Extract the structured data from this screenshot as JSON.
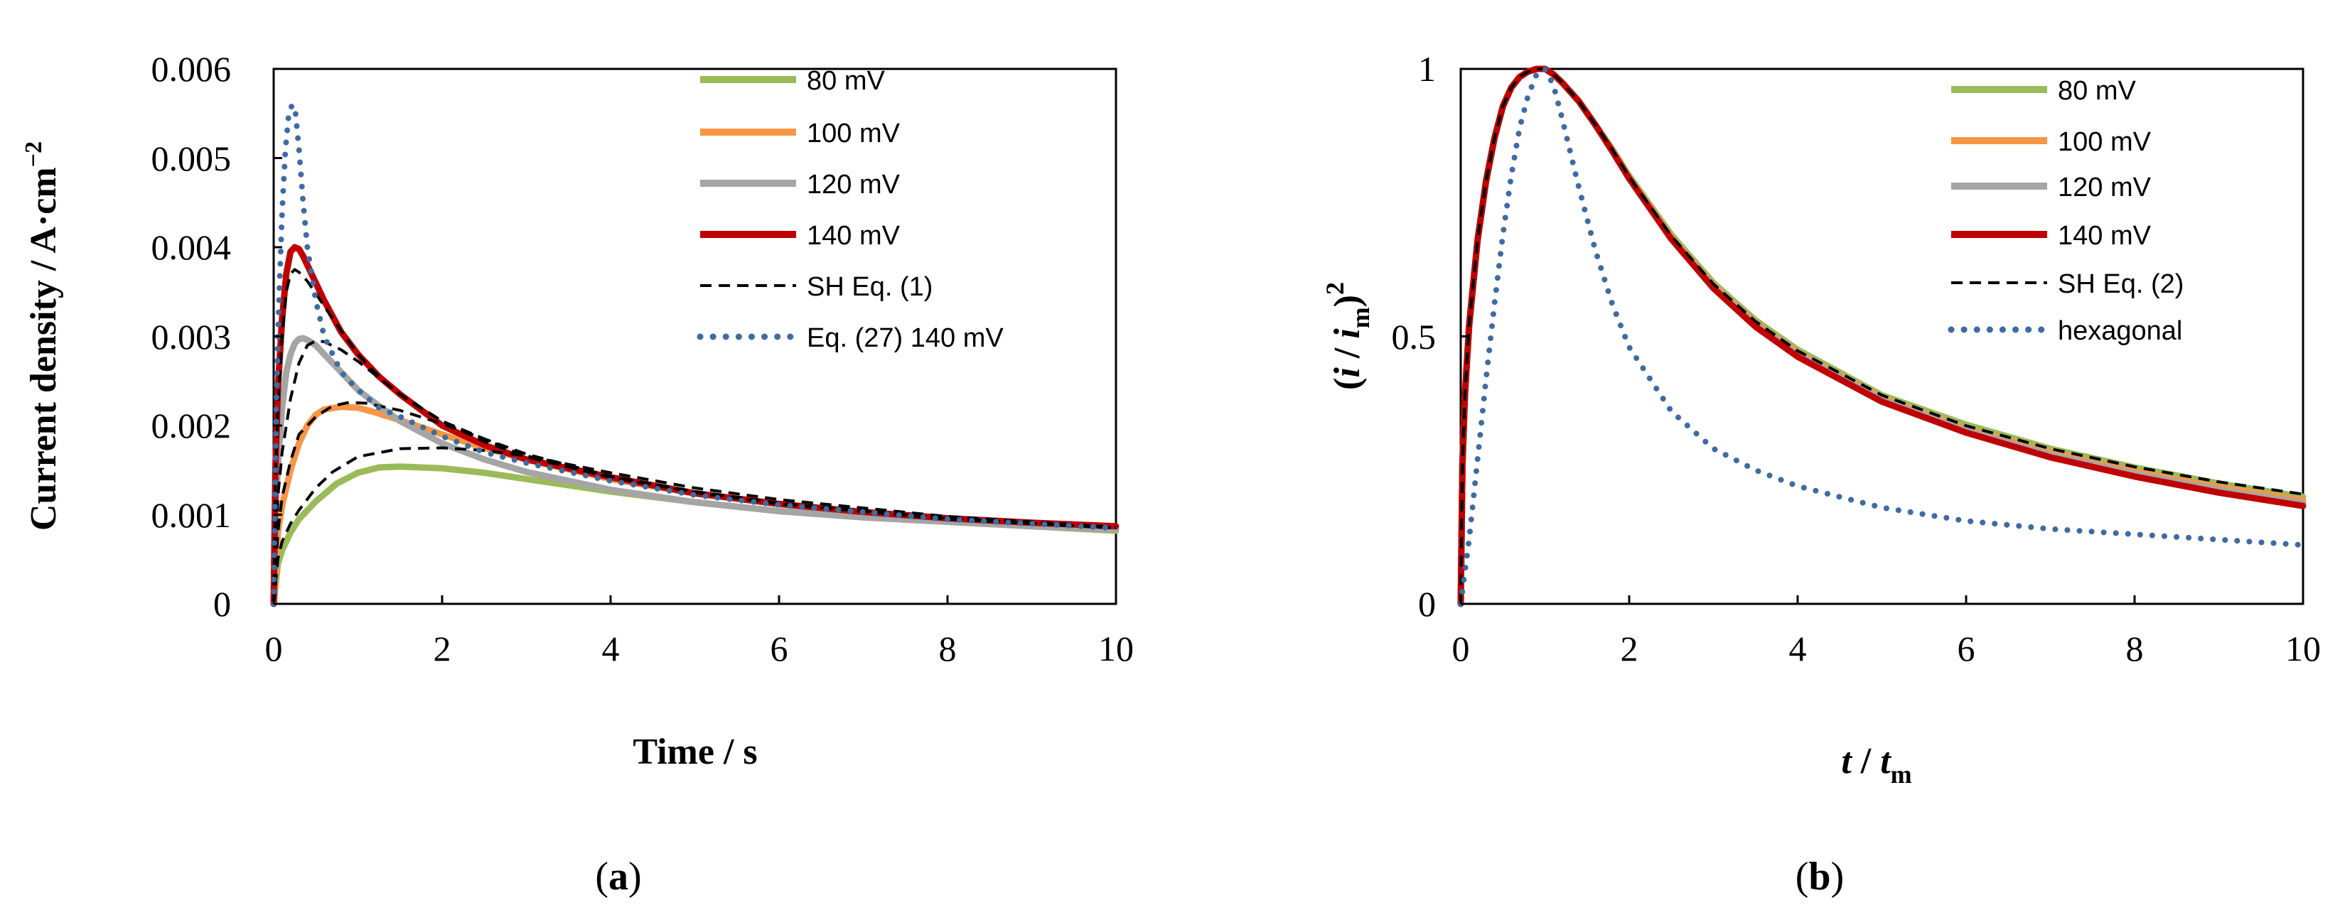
{
  "chart_data": [
    {
      "id": "a",
      "type": "line",
      "panel_label_open": "(",
      "panel_label_letter": "a",
      "panel_label_close": ")",
      "xlabel": "Time / s",
      "ylabel_main": "Current density / A·cm",
      "ylabel_sup": "−2",
      "xlim": [
        0,
        10
      ],
      "ylim": [
        0,
        0.006
      ],
      "xticks": [
        "0",
        "2",
        "4",
        "6",
        "8",
        "10"
      ],
      "yticks": [
        "0",
        "0.001",
        "0.002",
        "0.003",
        "0.004",
        "0.005",
        "0.006"
      ],
      "legend_position": "top-right",
      "series": [
        {
          "name": "80 mV",
          "color": "#9BBB59",
          "style": "solid",
          "x": [
            0,
            0.05,
            0.1,
            0.2,
            0.3,
            0.5,
            0.75,
            1,
            1.25,
            1.5,
            2,
            2.5,
            3,
            4,
            5,
            6,
            7,
            8,
            9,
            10
          ],
          "y": [
            0,
            0.00045,
            0.0006,
            0.0008,
            0.00095,
            0.00115,
            0.00135,
            0.00147,
            0.00153,
            0.00154,
            0.00152,
            0.00147,
            0.0014,
            0.00126,
            0.00114,
            0.00104,
            0.00097,
            0.00092,
            0.00087,
            0.00082
          ]
        },
        {
          "name": "100 mV",
          "color": "#F79646",
          "style": "solid",
          "x": [
            0,
            0.05,
            0.1,
            0.2,
            0.3,
            0.4,
            0.5,
            0.6,
            0.8,
            1,
            1.2,
            1.5,
            2,
            2.5,
            3,
            4,
            5,
            6,
            7,
            8,
            9,
            10
          ],
          "y": [
            0,
            0.0008,
            0.0011,
            0.0015,
            0.0018,
            0.002,
            0.00212,
            0.00218,
            0.00221,
            0.0022,
            0.00215,
            0.00206,
            0.0019,
            0.00175,
            0.00162,
            0.0014,
            0.00124,
            0.00112,
            0.00102,
            0.00095,
            0.00089,
            0.00083
          ]
        },
        {
          "name": "120 mV",
          "color": "#A5A5A5",
          "style": "solid",
          "x": [
            0,
            0.03,
            0.06,
            0.1,
            0.15,
            0.2,
            0.25,
            0.3,
            0.35,
            0.4,
            0.5,
            0.6,
            0.8,
            1,
            1.25,
            1.5,
            2,
            2.5,
            3,
            4,
            5,
            6,
            7,
            8,
            9,
            10
          ],
          "y": [
            0,
            0.0012,
            0.0017,
            0.0022,
            0.0026,
            0.0028,
            0.00292,
            0.00297,
            0.00298,
            0.00296,
            0.0029,
            0.0028,
            0.0026,
            0.0024,
            0.00222,
            0.00205,
            0.0018,
            0.00162,
            0.00148,
            0.00128,
            0.00114,
            0.00104,
            0.00097,
            0.00092,
            0.00087,
            0.00083
          ]
        },
        {
          "name": "140 mV",
          "color": "#C00000",
          "style": "solid",
          "x": [
            0,
            0.02,
            0.05,
            0.1,
            0.15,
            0.2,
            0.25,
            0.3,
            0.35,
            0.45,
            0.6,
            0.8,
            1,
            1.25,
            1.5,
            2,
            2.5,
            3,
            4,
            5,
            6,
            7,
            8,
            9,
            10
          ],
          "y": [
            0,
            0.0015,
            0.0024,
            0.0032,
            0.0037,
            0.00395,
            0.004,
            0.00398,
            0.0039,
            0.0037,
            0.0034,
            0.00305,
            0.0028,
            0.00255,
            0.00235,
            0.002,
            0.00178,
            0.00162,
            0.00142,
            0.00124,
            0.00112,
            0.00103,
            0.00096,
            0.00091,
            0.00087
          ]
        },
        {
          "name": "SH Eq. (1)",
          "color": "#000000",
          "style": "dashed",
          "x": [
            0,
            0.02,
            0.05,
            0.1,
            0.15,
            0.2,
            0.25,
            0.3,
            0.4,
            0.5,
            0.7,
            1,
            1.3,
            1.6,
            2,
            2.5,
            3,
            4,
            5,
            6,
            8,
            10
          ],
          "y": [
            0,
            0.0014,
            0.0022,
            0.003,
            0.0035,
            0.0037,
            0.00375,
            0.00372,
            0.00362,
            0.00348,
            0.0032,
            0.0028,
            0.0025,
            0.00228,
            0.00205,
            0.00182,
            0.00165,
            0.00142,
            0.00125,
            0.00112,
            0.00095,
            0.00085
          ]
        },
        {
          "name": "",
          "color": "#000000",
          "style": "dashed",
          "x": [
            0,
            0.05,
            0.1,
            0.2,
            0.3,
            0.4,
            0.5,
            0.6,
            0.8,
            1,
            1.5,
            2,
            3,
            4,
            5,
            6,
            8,
            10
          ],
          "y": [
            0,
            0.0012,
            0.0017,
            0.0023,
            0.0027,
            0.0029,
            0.00295,
            0.00294,
            0.00285,
            0.00272,
            0.00235,
            0.00205,
            0.00165,
            0.00142,
            0.00125,
            0.00112,
            0.00095,
            0.00085
          ]
        },
        {
          "name": "",
          "color": "#000000",
          "style": "dashed",
          "x": [
            0,
            0.05,
            0.1,
            0.2,
            0.3,
            0.5,
            0.7,
            0.9,
            1.1,
            1.5,
            2,
            2.5,
            3,
            4,
            5,
            6,
            8,
            10
          ],
          "y": [
            0,
            0.0008,
            0.0012,
            0.0016,
            0.0019,
            0.0021,
            0.00222,
            0.00226,
            0.00225,
            0.00217,
            0.00202,
            0.00185,
            0.00168,
            0.00143,
            0.00126,
            0.00113,
            0.00096,
            0.00085
          ]
        },
        {
          "name": "",
          "color": "#000000",
          "style": "dashed",
          "x": [
            0,
            0.05,
            0.1,
            0.2,
            0.3,
            0.5,
            0.7,
            1,
            1.5,
            2,
            2.5,
            3,
            4,
            5,
            6,
            8,
            10
          ],
          "y": [
            0,
            0.0005,
            0.0007,
            0.0009,
            0.00105,
            0.0013,
            0.00148,
            0.00165,
            0.00174,
            0.00175,
            0.00172,
            0.00166,
            0.00147,
            0.0013,
            0.00117,
            0.00098,
            0.00086
          ]
        },
        {
          "name": "Eq. (27) 140 mV",
          "color": "#3E6BA3",
          "style": "dotted",
          "x": [
            0,
            0.03,
            0.06,
            0.1,
            0.14,
            0.18,
            0.22,
            0.26,
            0.3,
            0.35,
            0.4,
            0.5,
            0.6,
            0.8,
            1,
            1.25,
            1.5,
            2,
            2.5,
            3,
            4,
            5,
            6,
            8,
            10
          ],
          "y": [
            0,
            0.0022,
            0.0033,
            0.0044,
            0.0051,
            0.0055,
            0.0056,
            0.0055,
            0.0051,
            0.0045,
            0.004,
            0.0034,
            0.003,
            0.0026,
            0.0024,
            0.0022,
            0.0021,
            0.00188,
            0.0017,
            0.00158,
            0.00138,
            0.00122,
            0.00111,
            0.00095,
            0.00085
          ]
        }
      ]
    },
    {
      "id": "b",
      "type": "line",
      "panel_label_open": "(",
      "panel_label_letter": "b",
      "panel_label_close": ")",
      "xlabel_t": "t",
      "xlabel_sep": " / ",
      "xlabel_t2": "t",
      "xlabel_sub": "m",
      "ylabel_open": "(",
      "ylabel_i": "i",
      "ylabel_sep": " / ",
      "ylabel_i2": "i",
      "ylabel_sub": "m",
      "ylabel_close": ")",
      "ylabel_sup": "2",
      "xlim": [
        0,
        10
      ],
      "ylim": [
        0,
        1
      ],
      "xticks": [
        "0",
        "2",
        "4",
        "6",
        "8",
        "10"
      ],
      "yticks": [
        "0",
        "0.5",
        "1"
      ],
      "legend_position": "top-right",
      "series": [
        {
          "name": "80 mV",
          "color": "#9BBB59",
          "style": "solid",
          "x": [
            0,
            0.02,
            0.05,
            0.1,
            0.2,
            0.3,
            0.4,
            0.5,
            0.6,
            0.7,
            0.8,
            0.9,
            1,
            1.1,
            1.2,
            1.4,
            1.6,
            1.8,
            2,
            2.5,
            3,
            3.5,
            4,
            5,
            6,
            7,
            8,
            9,
            10
          ],
          "y": [
            0,
            0.26,
            0.39,
            0.52,
            0.68,
            0.79,
            0.87,
            0.93,
            0.965,
            0.985,
            0.995,
            1,
            1,
            0.99,
            0.975,
            0.94,
            0.895,
            0.85,
            0.8,
            0.69,
            0.6,
            0.53,
            0.475,
            0.39,
            0.335,
            0.29,
            0.255,
            0.225,
            0.2
          ]
        },
        {
          "name": "100 mV",
          "color": "#F79646",
          "style": "solid",
          "x": [
            0,
            0.02,
            0.05,
            0.1,
            0.2,
            0.3,
            0.4,
            0.5,
            0.6,
            0.7,
            0.8,
            0.9,
            1,
            1.1,
            1.2,
            1.4,
            1.6,
            1.8,
            2,
            2.5,
            3,
            3.5,
            4,
            5,
            6,
            7,
            8,
            9,
            10
          ],
          "y": [
            0,
            0.26,
            0.39,
            0.52,
            0.68,
            0.79,
            0.87,
            0.93,
            0.965,
            0.985,
            0.995,
            1,
            1,
            0.99,
            0.975,
            0.94,
            0.895,
            0.848,
            0.797,
            0.685,
            0.595,
            0.525,
            0.47,
            0.385,
            0.328,
            0.283,
            0.247,
            0.218,
            0.193
          ]
        },
        {
          "name": "120 mV",
          "color": "#A5A5A5",
          "style": "solid",
          "x": [
            0,
            0.02,
            0.05,
            0.1,
            0.2,
            0.3,
            0.4,
            0.5,
            0.6,
            0.7,
            0.8,
            0.9,
            1,
            1.1,
            1.2,
            1.4,
            1.6,
            1.8,
            2,
            2.5,
            3,
            3.5,
            4,
            5,
            6,
            7,
            8,
            9,
            10
          ],
          "y": [
            0,
            0.26,
            0.39,
            0.52,
            0.68,
            0.79,
            0.87,
            0.93,
            0.965,
            0.985,
            0.995,
            1,
            1,
            0.99,
            0.975,
            0.94,
            0.895,
            0.847,
            0.796,
            0.683,
            0.593,
            0.522,
            0.467,
            0.382,
            0.324,
            0.279,
            0.243,
            0.213,
            0.188
          ]
        },
        {
          "name": "140 mV",
          "color": "#C00000",
          "style": "solid",
          "x": [
            0,
            0.02,
            0.05,
            0.1,
            0.2,
            0.3,
            0.4,
            0.5,
            0.6,
            0.7,
            0.8,
            0.9,
            1,
            1.1,
            1.2,
            1.4,
            1.6,
            1.8,
            2,
            2.5,
            3,
            3.5,
            4,
            5,
            6,
            7,
            8,
            9,
            10
          ],
          "y": [
            0,
            0.26,
            0.39,
            0.52,
            0.68,
            0.79,
            0.87,
            0.93,
            0.965,
            0.985,
            0.995,
            1,
            1,
            0.99,
            0.975,
            0.94,
            0.895,
            0.846,
            0.795,
            0.682,
            0.59,
            0.518,
            0.462,
            0.378,
            0.32,
            0.274,
            0.238,
            0.208,
            0.183
          ]
        },
        {
          "name": "SH Eq. (2)",
          "color": "#000000",
          "style": "dashed",
          "x": [
            0,
            0.02,
            0.05,
            0.1,
            0.2,
            0.3,
            0.4,
            0.5,
            0.6,
            0.7,
            0.8,
            0.9,
            1,
            1.1,
            1.2,
            1.4,
            1.6,
            1.8,
            2,
            2.5,
            3,
            3.5,
            4,
            5,
            6,
            7,
            8,
            9,
            10
          ],
          "y": [
            0,
            0.26,
            0.39,
            0.52,
            0.68,
            0.79,
            0.87,
            0.93,
            0.965,
            0.985,
            0.995,
            1,
            1,
            0.99,
            0.975,
            0.94,
            0.895,
            0.849,
            0.798,
            0.688,
            0.598,
            0.528,
            0.473,
            0.39,
            0.333,
            0.29,
            0.256,
            0.228,
            0.205
          ]
        },
        {
          "name": "hexagonal",
          "color": "#3E6BA3",
          "style": "dotted",
          "x": [
            0,
            0.1,
            0.2,
            0.3,
            0.4,
            0.5,
            0.6,
            0.7,
            0.8,
            0.9,
            1,
            1.1,
            1.2,
            1.4,
            1.6,
            1.8,
            2,
            2.5,
            3,
            3.5,
            4,
            5,
            6,
            7,
            8,
            9,
            10
          ],
          "y": [
            0,
            0.12,
            0.27,
            0.42,
            0.56,
            0.69,
            0.8,
            0.89,
            0.95,
            0.99,
            1,
            0.97,
            0.91,
            0.78,
            0.66,
            0.56,
            0.48,
            0.36,
            0.29,
            0.25,
            0.22,
            0.18,
            0.155,
            0.14,
            0.13,
            0.12,
            0.11
          ]
        }
      ]
    }
  ]
}
